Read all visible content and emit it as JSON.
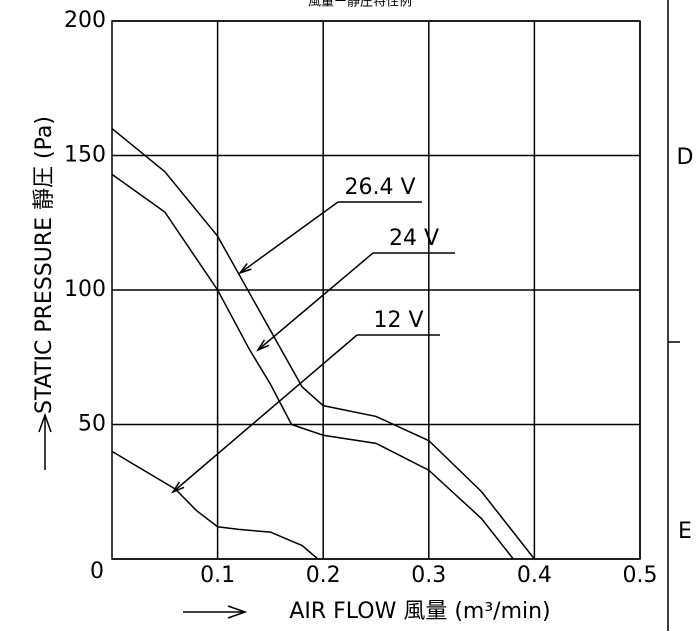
{
  "chart_data": {
    "type": "line",
    "title": "風量ー静圧特性例",
    "x_label": "AIR FLOW 風量 (m³/min)",
    "y_label": "STATIC PRESSURE 靜圧 (Pa)",
    "side_labels": [
      "D",
      "E"
    ],
    "xlim": [
      0,
      0.5
    ],
    "xticks": [
      0.1,
      0.2,
      0.3,
      0.4,
      0.5
    ],
    "ylim": [
      0,
      200
    ],
    "yticks": [
      0,
      50,
      100,
      150,
      200
    ],
    "grid": true,
    "series": [
      {
        "name": "26.4 V",
        "color": "#000000",
        "x": [
          0,
          0.05,
          0.1,
          0.13,
          0.15,
          0.18,
          0.2,
          0.25,
          0.3,
          0.35,
          0.4
        ],
        "values": [
          160,
          144,
          120,
          99,
          85,
          64,
          57,
          53,
          44,
          25,
          0
        ]
      },
      {
        "name": "24 V",
        "color": "#000000",
        "x": [
          0,
          0.05,
          0.1,
          0.13,
          0.15,
          0.17,
          0.2,
          0.25,
          0.3,
          0.35,
          0.38
        ],
        "values": [
          143,
          129,
          100,
          78,
          65,
          50,
          46,
          43,
          33,
          15,
          0
        ]
      },
      {
        "name": "12 V",
        "color": "#000000",
        "x": [
          0,
          0.03,
          0.06,
          0.08,
          0.1,
          0.12,
          0.15,
          0.18,
          0.195
        ],
        "values": [
          40,
          33,
          26,
          18,
          12,
          11,
          10,
          5,
          0
        ]
      }
    ]
  }
}
